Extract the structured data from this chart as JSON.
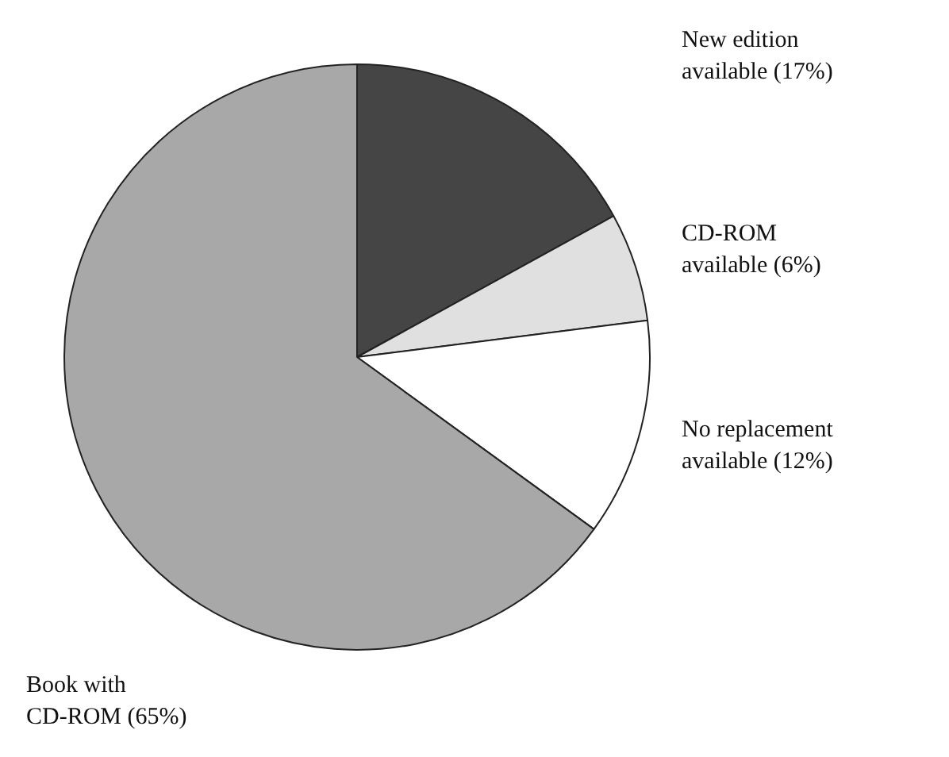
{
  "chart_data": {
    "type": "pie",
    "categories": [
      "New edition available",
      "CD-ROM available",
      "No replacement available",
      "Book with CD-ROM"
    ],
    "values": [
      17,
      6,
      12,
      65
    ],
    "colors": [
      "#454545",
      "#e0e0e0",
      "#ffffff",
      "#a8a8a8"
    ],
    "value_labels": [
      "(17%)",
      "(6%)",
      "(12%)",
      "(65%)"
    ]
  }
}
